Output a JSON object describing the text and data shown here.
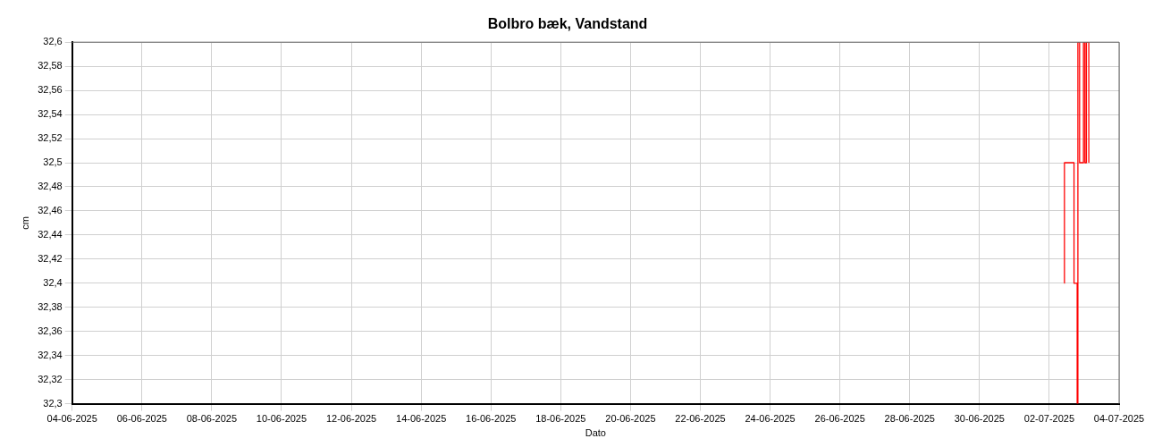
{
  "chart_data": {
    "type": "step",
    "title": "Bolbro bæk, Vandstand",
    "xlabel": "Dato",
    "ylabel": "cm",
    "x": [
      "2025-07-02T10:20",
      "2025-07-02T10:25",
      "2025-07-02T17:00",
      "2025-07-02T19:10",
      "2025-07-02T19:40",
      "2025-07-02T20:50",
      "2025-07-02T23:30",
      "2025-07-03T00:30",
      "2025-07-03T01:30",
      "2025-07-03T03:10"
    ],
    "series": [
      {
        "color": "#ff0000",
        "values": [
          32.4,
          32.5,
          32.4,
          32.3,
          32.6,
          32.5,
          32.6,
          32.5,
          32.6,
          32.5
        ]
      }
    ],
    "xlim": [
      "2025-06-04",
      "2025-07-04"
    ],
    "xticks": [
      {
        "value": "2025-06-04",
        "label": "04-06-2025"
      },
      {
        "value": "2025-06-06",
        "label": "06-06-2025"
      },
      {
        "value": "2025-06-08",
        "label": "08-06-2025"
      },
      {
        "value": "2025-06-10",
        "label": "10-06-2025"
      },
      {
        "value": "2025-06-12",
        "label": "12-06-2025"
      },
      {
        "value": "2025-06-14",
        "label": "14-06-2025"
      },
      {
        "value": "2025-06-16",
        "label": "16-06-2025"
      },
      {
        "value": "2025-06-18",
        "label": "18-06-2025"
      },
      {
        "value": "2025-06-20",
        "label": "20-06-2025"
      },
      {
        "value": "2025-06-22",
        "label": "22-06-2025"
      },
      {
        "value": "2025-06-24",
        "label": "24-06-2025"
      },
      {
        "value": "2025-06-26",
        "label": "26-06-2025"
      },
      {
        "value": "2025-06-28",
        "label": "28-06-2025"
      },
      {
        "value": "2025-06-30",
        "label": "30-06-2025"
      },
      {
        "value": "2025-07-02",
        "label": "02-07-2025"
      },
      {
        "value": "2025-07-04",
        "label": "04-07-2025"
      }
    ],
    "ylim": [
      32.3,
      32.6
    ],
    "yticks": [
      {
        "value": 32.3,
        "label": "32,3"
      },
      {
        "value": 32.32,
        "label": "32,32"
      },
      {
        "value": 32.34,
        "label": "32,34"
      },
      {
        "value": 32.36,
        "label": "32,36"
      },
      {
        "value": 32.38,
        "label": "32,38"
      },
      {
        "value": 32.4,
        "label": "32,4"
      },
      {
        "value": 32.42,
        "label": "32,42"
      },
      {
        "value": 32.44,
        "label": "32,44"
      },
      {
        "value": 32.46,
        "label": "32,46"
      },
      {
        "value": 32.48,
        "label": "32,48"
      },
      {
        "value": 32.5,
        "label": "32,5"
      },
      {
        "value": 32.52,
        "label": "32,52"
      },
      {
        "value": 32.54,
        "label": "32,54"
      },
      {
        "value": 32.56,
        "label": "32,56"
      },
      {
        "value": 32.58,
        "label": "32,58"
      },
      {
        "value": 32.6,
        "label": "32,6"
      }
    ],
    "grid": true,
    "legend": false,
    "marker": "none",
    "line_style": "solid"
  }
}
